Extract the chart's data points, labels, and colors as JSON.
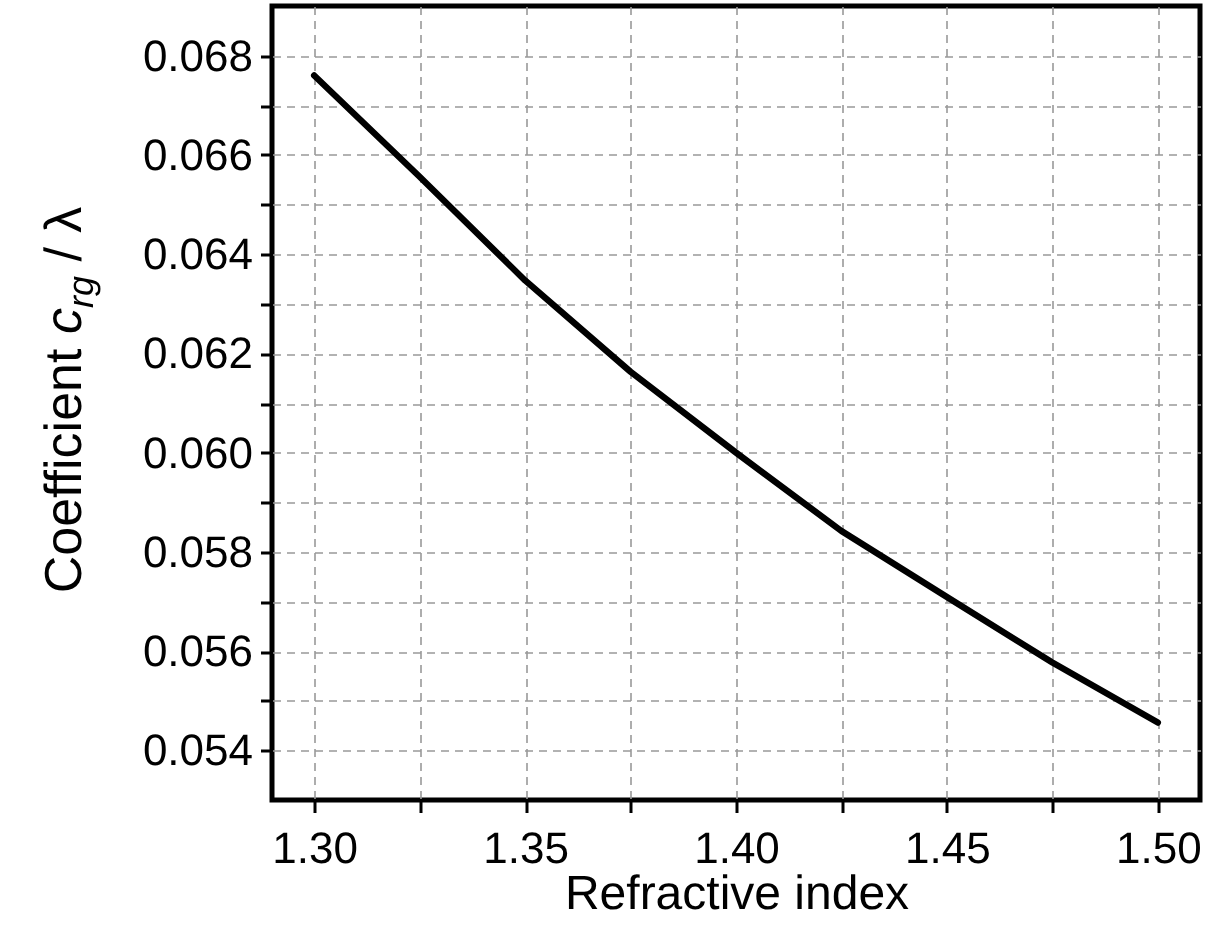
{
  "chart_data": {
    "type": "line",
    "xlabel": "Refractive index",
    "ylabel": "Coefficient c$_{rg}$ / λ",
    "x": [
      1.3,
      1.325,
      1.35,
      1.375,
      1.4,
      1.425,
      1.45,
      1.475,
      1.5
    ],
    "series": [
      {
        "color": "#000000",
        "values": [
          0.0676,
          0.06556,
          0.06347,
          0.06163,
          0.06,
          0.05842,
          0.05709,
          0.05577,
          0.05456
        ]
      }
    ],
    "xlim": [
      1.29,
      1.51
    ],
    "xticks": [
      {
        "value": 1.3,
        "label": "1.30"
      },
      {
        "value": 1.325,
        "label": null
      },
      {
        "value": 1.35,
        "label": "1.35"
      },
      {
        "value": 1.375,
        "label": null
      },
      {
        "value": 1.4,
        "label": "1.40"
      },
      {
        "value": 1.425,
        "label": null
      },
      {
        "value": 1.45,
        "label": "1.45"
      },
      {
        "value": 1.475,
        "label": null
      },
      {
        "value": 1.5,
        "label": "1.50"
      }
    ],
    "ylim": [
      0.053,
      0.069
    ],
    "yticks": [
      {
        "value": 0.054,
        "label": "0.054"
      },
      {
        "value": 0.055,
        "label": null
      },
      {
        "value": 0.056,
        "label": "0.056"
      },
      {
        "value": 0.057,
        "label": null
      },
      {
        "value": 0.058,
        "label": "0.058"
      },
      {
        "value": 0.059,
        "label": null
      },
      {
        "value": 0.06,
        "label": "0.060"
      },
      {
        "value": 0.061,
        "label": null
      },
      {
        "value": 0.062,
        "label": "0.062"
      },
      {
        "value": 0.063,
        "label": null
      },
      {
        "value": 0.064,
        "label": "0.064"
      },
      {
        "value": 0.065,
        "label": null
      },
      {
        "value": 0.066,
        "label": "0.066"
      },
      {
        "value": 0.067,
        "label": null
      },
      {
        "value": 0.068,
        "label": "0.068"
      }
    ],
    "grid": true,
    "line_style": "solid"
  }
}
